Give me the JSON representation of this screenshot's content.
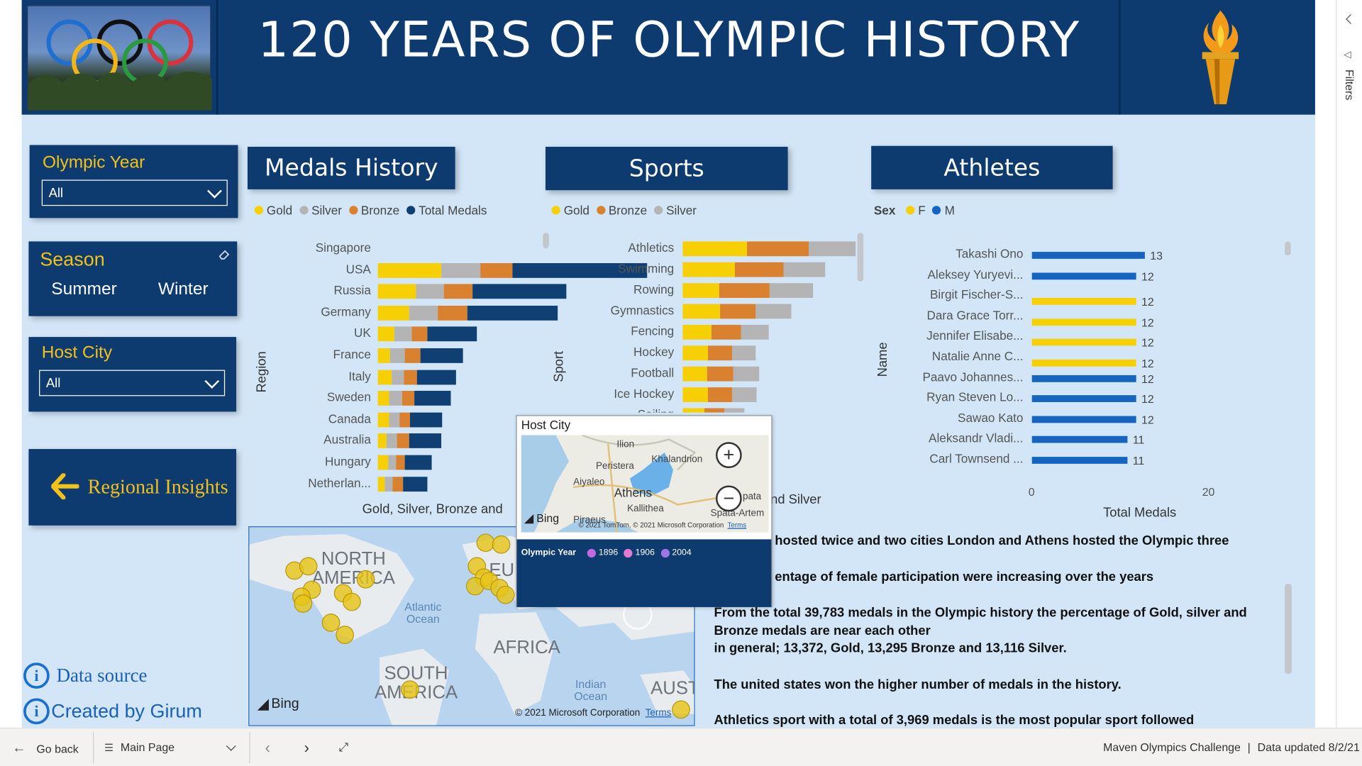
{
  "header": {
    "title": "120 YEARS OF OLYMPIC HISTORY"
  },
  "slicers": {
    "olympic_year": {
      "title": "Olympic Year",
      "value": "All"
    },
    "season": {
      "title": "Season",
      "options": [
        "Summer",
        "Winter"
      ]
    },
    "host_city": {
      "title": "Host City",
      "value": "All"
    }
  },
  "nav_button": {
    "label": "Regional Insights"
  },
  "links": {
    "data_source": "Data source",
    "created_by": "Created by Girum"
  },
  "medals_chart": {
    "title": "Medals History",
    "legend": [
      "Gold",
      "Silver",
      "Bronze",
      "Total Medals"
    ],
    "y_axis_title": "Region",
    "x_axis_title": "Gold, Silver, Bronze and"
  },
  "sports_chart": {
    "title": "Sports",
    "legend": [
      "Gold",
      "Bronze",
      "Silver"
    ],
    "y_axis_title": "Sport",
    "x_axis_title": "nd Silver"
  },
  "athletes_chart": {
    "title": "Athletes",
    "legend_title": "Sex",
    "legend": [
      "F",
      "M"
    ],
    "y_axis_title": "Name",
    "x_axis_title": "Total Medals",
    "x_ticks": [
      "0",
      "20"
    ]
  },
  "chart_data": [
    {
      "type": "bar",
      "stacked": true,
      "title": "Medals History",
      "ylabel": "Region",
      "categories": [
        "Singapore",
        "USA",
        "Russia",
        "Germany",
        "UK",
        "France",
        "Italy",
        "Sweden",
        "Canada",
        "Australia",
        "Hungary",
        "Netherlan..."
      ],
      "series": [
        {
          "name": "Gold",
          "values": [
            0,
            2638,
            1599,
            1305,
            678,
            501,
            575,
            479,
            463,
            348,
            432,
            287
          ]
        },
        {
          "name": "Silver",
          "values": [
            0,
            1641,
            1170,
            1195,
            739,
            610,
            531,
            522,
            438,
            455,
            332,
            340
          ]
        },
        {
          "name": "Bronze",
          "values": [
            0,
            1358,
            1178,
            1260,
            651,
            666,
            531,
            535,
            451,
            517,
            371,
            413
          ]
        },
        {
          "name": "Total Medals",
          "values": [
            0,
            5637,
            3947,
            3760,
            2068,
            1777,
            1637,
            1536,
            1352,
            1320,
            1135,
            1040
          ]
        }
      ],
      "xlim": [
        0,
        16000
      ]
    },
    {
      "type": "bar",
      "stacked": true,
      "title": "Sports",
      "ylabel": "Sport",
      "categories": [
        "Athletics",
        "Swimming",
        "Rowing",
        "Gymnastics",
        "Fencing",
        "Hockey",
        "Football",
        "Ice Hockey",
        "Sailing"
      ],
      "series": [
        {
          "name": "Gold",
          "values": [
            1339,
            1087,
            767,
            777,
            593,
            532,
            503,
            520,
            455
          ]
        },
        {
          "name": "Bronze",
          "values": [
            1293,
            1010,
            1040,
            746,
            625,
            502,
            548,
            510,
            414
          ]
        },
        {
          "name": "Silver",
          "values": [
            1337,
            874,
            913,
            735,
            573,
            495,
            538,
            504,
            412
          ]
        }
      ],
      "xlim": [
        0,
        4000
      ]
    },
    {
      "type": "bar",
      "title": "Athletes",
      "xlabel": "Total Medals",
      "ylabel": "Name",
      "categories": [
        "Takashi Ono",
        "Aleksey Yuryevi...",
        "Birgit Fischer-S...",
        "Dara Grace Torr...",
        "Jennifer Elisabe...",
        "Natalie Anne C...",
        "Paavo Johannes...",
        "Ryan Steven Lo...",
        "Sawao Kato",
        "Aleksandr Vladi...",
        "Carl Townsend ..."
      ],
      "series": [
        {
          "name": "F",
          "values": [
            0,
            0,
            12,
            12,
            12,
            12,
            0,
            0,
            0,
            0,
            0
          ]
        },
        {
          "name": "M",
          "values": [
            13,
            12,
            0,
            0,
            0,
            0,
            12,
            12,
            12,
            11,
            11
          ]
        }
      ],
      "data_labels": [
        "13",
        "12",
        "12",
        "12",
        "12",
        "12",
        "12",
        "12",
        "12",
        "11",
        "11"
      ],
      "xlim": [
        0,
        27
      ]
    }
  ],
  "world_map": {
    "labels": [
      "NORTH AMERICA",
      "Atlantic Ocean",
      "EU",
      "AFRICA",
      "SOUTH AMERICA",
      "Indian Ocean",
      "AUST"
    ],
    "provider": "Bing",
    "copyright": "© 2021 Microsoft Corporation",
    "terms": "Terms"
  },
  "tooltip": {
    "title": "Host City",
    "map_labels": [
      "Ilion",
      "Khalandrion",
      "Peristera",
      "Aiyaleo",
      "Athens",
      "Kallithea",
      "Piraeus",
      "Spata-Artem",
      "pata"
    ],
    "map_copyright": "© 2021 TomTom, © 2021 Microsoft Corporation",
    "map_terms": "Terms",
    "provider": "Bing",
    "legend_title": "Olympic Year",
    "legend": [
      "1896",
      "1906",
      "2004"
    ]
  },
  "insights": [
    "hosted twice and two cities  London and Athens hosted the Olympic three",
    "entage of female participation were increasing over the years",
    "From the total 39,783 medals in the Olympic history the percentage of Gold,  silver and",
    "Bronze medals are near each other",
    "in general; 13,372, Gold, 13,295 Bronze and 13,116 Silver.",
    "The united states won the higher number of medals  in the history.",
    "Athletics sport with a total of 3,969 medals is the most popular sport followed"
  ],
  "filters_pane": {
    "label": "Filters"
  },
  "bottom_bar": {
    "go_back": "Go back",
    "page": "Main Page",
    "report_name": "Maven Olympics Challenge",
    "updated": "Data updated 8/2/21"
  },
  "colors": {
    "navy": "#0d3a6f",
    "gold": "#f7cf05",
    "silver": "#b4b4b4",
    "bronze": "#d9812f",
    "total": "#0f3f73",
    "female": "#f7cf05",
    "male": "#1565c0",
    "background": "#d2e6f7"
  }
}
